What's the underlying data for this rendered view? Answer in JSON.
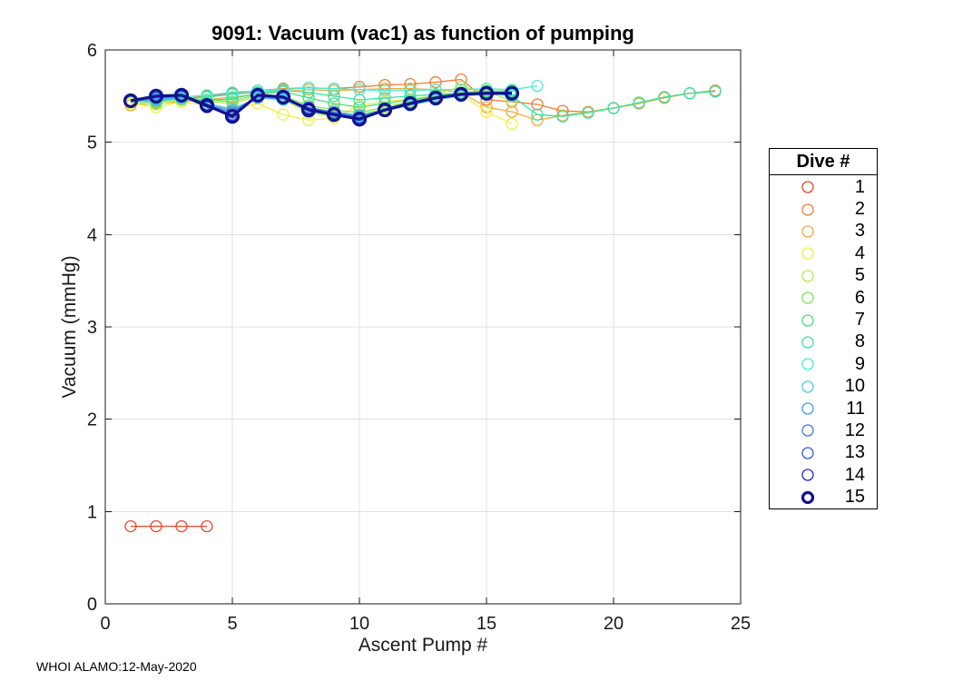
{
  "footer": {
    "text": "WHOI ALAMO:12-May-2020"
  },
  "chart_data": {
    "type": "line",
    "title": "9091: Vacuum (vac1) as function of pumping",
    "xlabel": "Ascent Pump #",
    "ylabel": "Vacuum (mmHg)",
    "xlim": [
      0,
      25
    ],
    "ylim": [
      0,
      6
    ],
    "x_ticks": [
      0,
      5,
      10,
      15,
      20,
      25
    ],
    "y_ticks": [
      0,
      1,
      2,
      3,
      4,
      5,
      6
    ],
    "grid": true,
    "marker": "o",
    "legend_title": "Dive #",
    "legend_position": "right-outside",
    "axis_color": "#1a1a1a",
    "grid_color": "#e0e0e0",
    "series": [
      {
        "name": "1",
        "color": "#e8482c",
        "x": [
          1,
          2,
          3,
          4
        ],
        "y": [
          0.84,
          0.84,
          0.84,
          0.84
        ]
      },
      {
        "name": "2",
        "color": "#f07d33",
        "x": [
          1,
          2,
          3,
          4,
          5,
          6,
          7,
          8,
          9,
          10,
          11,
          12,
          13,
          14,
          15,
          16,
          17,
          18,
          19,
          20,
          21,
          22,
          23,
          24
        ],
        "y": [
          5.44,
          5.45,
          5.47,
          5.5,
          5.53,
          5.56,
          5.58,
          5.59,
          5.58,
          5.6,
          5.62,
          5.63,
          5.65,
          5.68,
          5.46,
          5.44,
          5.41,
          5.34,
          5.33,
          5.37,
          5.42,
          5.49,
          5.53,
          5.56
        ]
      },
      {
        "name": "3",
        "color": "#f2a93c",
        "x": [
          1,
          2,
          3,
          4,
          5,
          6,
          7,
          8,
          9,
          10,
          11,
          12,
          13,
          14,
          15,
          16,
          17,
          18,
          19,
          20,
          21,
          22,
          23,
          24
        ],
        "y": [
          5.4,
          5.42,
          5.44,
          5.46,
          5.49,
          5.52,
          5.55,
          5.57,
          5.56,
          5.57,
          5.58,
          5.58,
          5.57,
          5.54,
          5.38,
          5.33,
          5.24,
          5.29,
          5.33,
          5.37,
          5.42,
          5.48,
          5.53,
          5.55
        ]
      },
      {
        "name": "4",
        "color": "#f2ee44",
        "x": [
          1,
          2,
          3,
          4,
          5,
          6,
          7,
          8,
          9,
          10,
          11,
          12,
          13,
          14,
          15,
          16
        ],
        "y": [
          5.42,
          5.38,
          5.44,
          5.4,
          5.35,
          5.42,
          5.3,
          5.24,
          5.26,
          5.4,
          5.44,
          5.47,
          5.5,
          5.52,
          5.33,
          5.2
        ]
      },
      {
        "name": "5",
        "color": "#b5e84e",
        "x": [
          1,
          2,
          3,
          4,
          5,
          6,
          7,
          8,
          9,
          10,
          11,
          12,
          13,
          14,
          15,
          16
        ],
        "y": [
          5.43,
          5.41,
          5.46,
          5.44,
          5.42,
          5.5,
          5.46,
          5.32,
          5.28,
          5.3,
          5.36,
          5.44,
          5.52,
          5.6,
          5.55,
          5.45
        ]
      },
      {
        "name": "6",
        "color": "#84e159",
        "x": [
          1,
          2,
          3,
          4,
          5,
          6,
          7,
          8,
          9,
          10,
          11,
          12,
          13,
          14,
          15,
          16
        ],
        "y": [
          5.45,
          5.43,
          5.48,
          5.46,
          5.44,
          5.52,
          5.5,
          5.4,
          5.35,
          5.32,
          5.38,
          5.44,
          5.5,
          5.54,
          5.56,
          5.55
        ]
      },
      {
        "name": "7",
        "color": "#50dc7c",
        "x": [
          1,
          2,
          3,
          4,
          5,
          6,
          7,
          8,
          9,
          10,
          11,
          12,
          13,
          14,
          15,
          16
        ],
        "y": [
          5.44,
          5.44,
          5.47,
          5.45,
          5.47,
          5.53,
          5.55,
          5.48,
          5.42,
          5.38,
          5.42,
          5.46,
          5.5,
          5.53,
          5.55,
          5.56
        ]
      },
      {
        "name": "8",
        "color": "#36e3a4",
        "x": [
          1,
          2,
          3,
          4,
          5,
          6,
          7,
          8,
          9,
          10,
          11,
          12,
          13,
          14,
          15,
          16,
          17,
          18,
          19,
          20,
          21,
          22,
          23,
          24
        ],
        "y": [
          5.45,
          5.46,
          5.47,
          5.49,
          5.52,
          5.54,
          5.56,
          5.54,
          5.5,
          5.46,
          5.48,
          5.5,
          5.52,
          5.53,
          5.54,
          5.5,
          5.3,
          5.28,
          5.32,
          5.37,
          5.43,
          5.49,
          5.53,
          5.55
        ]
      },
      {
        "name": "9",
        "color": "#48ebd9",
        "x": [
          1,
          2,
          3,
          4,
          5,
          6,
          7,
          8,
          9,
          10,
          11,
          12,
          13,
          14,
          15,
          16,
          17
        ],
        "y": [
          5.45,
          5.47,
          5.49,
          5.51,
          5.54,
          5.56,
          5.57,
          5.59,
          5.58,
          5.57,
          5.56,
          5.56,
          5.57,
          5.57,
          5.58,
          5.57,
          5.61
        ]
      },
      {
        "name": "10",
        "color": "#53c6ee",
        "x": [
          1,
          2,
          3,
          4,
          5,
          6,
          7,
          8,
          9,
          10,
          11,
          12,
          13,
          14,
          15,
          16
        ],
        "y": [
          5.44,
          5.46,
          5.48,
          5.42,
          5.36,
          5.48,
          5.46,
          5.36,
          5.32,
          5.28,
          5.34,
          5.4,
          5.46,
          5.5,
          5.52,
          5.53
        ]
      },
      {
        "name": "11",
        "color": "#4a9ce9",
        "x": [
          1,
          2,
          3,
          4,
          5,
          6,
          7,
          8,
          9,
          10,
          11,
          12,
          13,
          14,
          15,
          16
        ],
        "y": [
          5.45,
          5.47,
          5.49,
          5.41,
          5.34,
          5.49,
          5.47,
          5.37,
          5.33,
          5.29,
          5.35,
          5.41,
          5.47,
          5.51,
          5.52,
          5.53
        ]
      },
      {
        "name": "12",
        "color": "#4179e2",
        "x": [
          1,
          2,
          3,
          4,
          5,
          6,
          7,
          8,
          9,
          10,
          11,
          12,
          13,
          14,
          15,
          16
        ],
        "y": [
          5.44,
          5.48,
          5.5,
          5.4,
          5.32,
          5.5,
          5.48,
          5.38,
          5.32,
          5.27,
          5.34,
          5.41,
          5.47,
          5.51,
          5.53,
          5.54
        ]
      },
      {
        "name": "13",
        "color": "#3c58da",
        "x": [
          1,
          2,
          3,
          4,
          5,
          6,
          7,
          8,
          9,
          10,
          11,
          12,
          13,
          14,
          15,
          16
        ],
        "y": [
          5.45,
          5.49,
          5.5,
          5.39,
          5.3,
          5.51,
          5.49,
          5.37,
          5.31,
          5.26,
          5.34,
          5.42,
          5.48,
          5.52,
          5.53,
          5.54
        ]
      },
      {
        "name": "14",
        "color": "#2628c4",
        "x": [
          1,
          2,
          3,
          4,
          5,
          6,
          7,
          8,
          9,
          10,
          11,
          12,
          13,
          14,
          15,
          16
        ],
        "y": [
          5.45,
          5.5,
          5.5,
          5.38,
          5.29,
          5.51,
          5.49,
          5.36,
          5.3,
          5.26,
          5.35,
          5.42,
          5.48,
          5.52,
          5.53,
          5.53
        ]
      },
      {
        "name": "15",
        "color": "#11138f",
        "line_width": 3.2,
        "marker_width": 3.2,
        "marker_radius": 6.5,
        "x": [
          1,
          2,
          3,
          4,
          5,
          6,
          7,
          8,
          9,
          10,
          11,
          12,
          13,
          14,
          15,
          16
        ],
        "y": [
          5.45,
          5.5,
          5.51,
          5.4,
          5.28,
          5.51,
          5.49,
          5.35,
          5.3,
          5.25,
          5.35,
          5.42,
          5.48,
          5.52,
          5.53,
          5.53
        ]
      }
    ]
  }
}
